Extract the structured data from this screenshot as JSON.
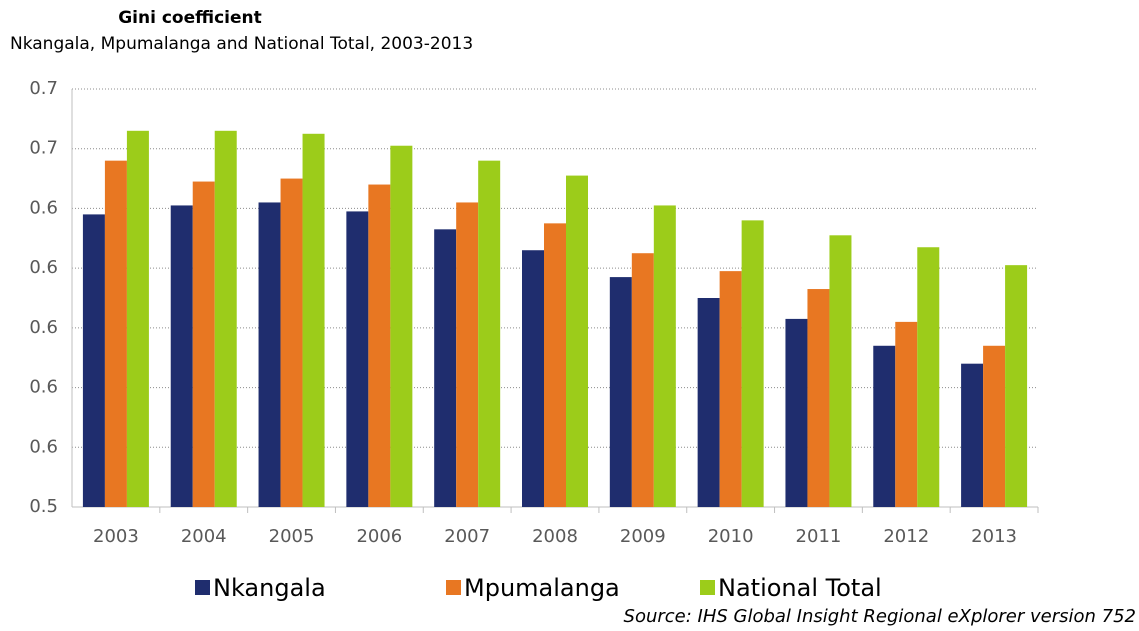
{
  "chart_data": {
    "type": "bar",
    "title": "Gini coefficient",
    "subtitle": "Nkangala, Mpumalanga and National Total, 2003-2013",
    "source": "Source: IHS Global Insight Regional eXplorer version 752",
    "categories": [
      "2003",
      "2004",
      "2005",
      "2006",
      "2007",
      "2008",
      "2009",
      "2010",
      "2011",
      "2012",
      "2013"
    ],
    "series": [
      {
        "name": "Nkangala",
        "color": "#1f2d6e",
        "values": [
          0.638,
          0.641,
          0.642,
          0.639,
          0.633,
          0.626,
          0.617,
          0.61,
          0.603,
          0.594,
          0.588
        ]
      },
      {
        "name": "Mpumalanga",
        "color": "#e87722",
        "values": [
          0.656,
          0.649,
          0.65,
          0.648,
          0.642,
          0.635,
          0.625,
          0.619,
          0.613,
          0.602,
          0.594
        ]
      },
      {
        "name": "National Total",
        "color": "#9ccc1a",
        "values": [
          0.666,
          0.666,
          0.665,
          0.661,
          0.656,
          0.651,
          0.641,
          0.636,
          0.631,
          0.627,
          0.621
        ]
      }
    ],
    "ylim": [
      0.54,
      0.68
    ],
    "yticks": [
      {
        "value": 0.54,
        "label": "0.5"
      },
      {
        "value": 0.56,
        "label": "0.6"
      },
      {
        "value": 0.58,
        "label": "0.6"
      },
      {
        "value": 0.6,
        "label": "0.6"
      },
      {
        "value": 0.62,
        "label": "0.6"
      },
      {
        "value": 0.64,
        "label": "0.6"
      },
      {
        "value": 0.66,
        "label": "0.7"
      },
      {
        "value": 0.68,
        "label": "0.7"
      }
    ],
    "grid": true,
    "legend": "bottom"
  }
}
